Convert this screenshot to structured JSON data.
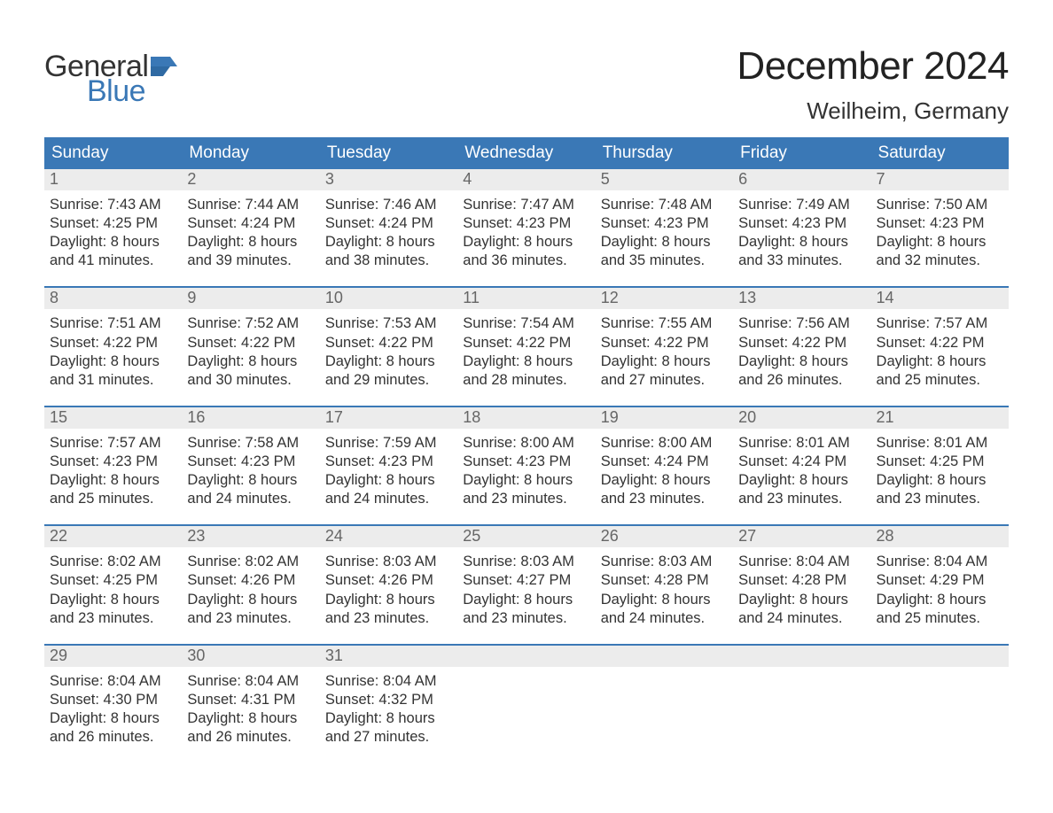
{
  "brand": {
    "word1": "General",
    "word2": "Blue",
    "accent_color": "#3a78b6",
    "text_color": "#333333"
  },
  "title": {
    "month_year": "December 2024",
    "location": "Weilheim, Germany",
    "title_fontsize": 44,
    "location_fontsize": 26,
    "title_color": "#222222"
  },
  "calendar": {
    "type": "table",
    "header_bg": "#3a78b6",
    "header_text_color": "#ffffff",
    "band_bg": "#ececec",
    "band_text_color": "#666666",
    "divider_color": "#3a78b6",
    "body_text_color": "#333333",
    "body_fontsize": 16.5,
    "columns": [
      "Sunday",
      "Monday",
      "Tuesday",
      "Wednesday",
      "Thursday",
      "Friday",
      "Saturday"
    ],
    "weeks": [
      [
        {
          "n": "1",
          "sunrise": "Sunrise: 7:43 AM",
          "sunset": "Sunset: 4:25 PM",
          "dl1": "Daylight: 8 hours",
          "dl2": "and 41 minutes."
        },
        {
          "n": "2",
          "sunrise": "Sunrise: 7:44 AM",
          "sunset": "Sunset: 4:24 PM",
          "dl1": "Daylight: 8 hours",
          "dl2": "and 39 minutes."
        },
        {
          "n": "3",
          "sunrise": "Sunrise: 7:46 AM",
          "sunset": "Sunset: 4:24 PM",
          "dl1": "Daylight: 8 hours",
          "dl2": "and 38 minutes."
        },
        {
          "n": "4",
          "sunrise": "Sunrise: 7:47 AM",
          "sunset": "Sunset: 4:23 PM",
          "dl1": "Daylight: 8 hours",
          "dl2": "and 36 minutes."
        },
        {
          "n": "5",
          "sunrise": "Sunrise: 7:48 AM",
          "sunset": "Sunset: 4:23 PM",
          "dl1": "Daylight: 8 hours",
          "dl2": "and 35 minutes."
        },
        {
          "n": "6",
          "sunrise": "Sunrise: 7:49 AM",
          "sunset": "Sunset: 4:23 PM",
          "dl1": "Daylight: 8 hours",
          "dl2": "and 33 minutes."
        },
        {
          "n": "7",
          "sunrise": "Sunrise: 7:50 AM",
          "sunset": "Sunset: 4:23 PM",
          "dl1": "Daylight: 8 hours",
          "dl2": "and 32 minutes."
        }
      ],
      [
        {
          "n": "8",
          "sunrise": "Sunrise: 7:51 AM",
          "sunset": "Sunset: 4:22 PM",
          "dl1": "Daylight: 8 hours",
          "dl2": "and 31 minutes."
        },
        {
          "n": "9",
          "sunrise": "Sunrise: 7:52 AM",
          "sunset": "Sunset: 4:22 PM",
          "dl1": "Daylight: 8 hours",
          "dl2": "and 30 minutes."
        },
        {
          "n": "10",
          "sunrise": "Sunrise: 7:53 AM",
          "sunset": "Sunset: 4:22 PM",
          "dl1": "Daylight: 8 hours",
          "dl2": "and 29 minutes."
        },
        {
          "n": "11",
          "sunrise": "Sunrise: 7:54 AM",
          "sunset": "Sunset: 4:22 PM",
          "dl1": "Daylight: 8 hours",
          "dl2": "and 28 minutes."
        },
        {
          "n": "12",
          "sunrise": "Sunrise: 7:55 AM",
          "sunset": "Sunset: 4:22 PM",
          "dl1": "Daylight: 8 hours",
          "dl2": "and 27 minutes."
        },
        {
          "n": "13",
          "sunrise": "Sunrise: 7:56 AM",
          "sunset": "Sunset: 4:22 PM",
          "dl1": "Daylight: 8 hours",
          "dl2": "and 26 minutes."
        },
        {
          "n": "14",
          "sunrise": "Sunrise: 7:57 AM",
          "sunset": "Sunset: 4:22 PM",
          "dl1": "Daylight: 8 hours",
          "dl2": "and 25 minutes."
        }
      ],
      [
        {
          "n": "15",
          "sunrise": "Sunrise: 7:57 AM",
          "sunset": "Sunset: 4:23 PM",
          "dl1": "Daylight: 8 hours",
          "dl2": "and 25 minutes."
        },
        {
          "n": "16",
          "sunrise": "Sunrise: 7:58 AM",
          "sunset": "Sunset: 4:23 PM",
          "dl1": "Daylight: 8 hours",
          "dl2": "and 24 minutes."
        },
        {
          "n": "17",
          "sunrise": "Sunrise: 7:59 AM",
          "sunset": "Sunset: 4:23 PM",
          "dl1": "Daylight: 8 hours",
          "dl2": "and 24 minutes."
        },
        {
          "n": "18",
          "sunrise": "Sunrise: 8:00 AM",
          "sunset": "Sunset: 4:23 PM",
          "dl1": "Daylight: 8 hours",
          "dl2": "and 23 minutes."
        },
        {
          "n": "19",
          "sunrise": "Sunrise: 8:00 AM",
          "sunset": "Sunset: 4:24 PM",
          "dl1": "Daylight: 8 hours",
          "dl2": "and 23 minutes."
        },
        {
          "n": "20",
          "sunrise": "Sunrise: 8:01 AM",
          "sunset": "Sunset: 4:24 PM",
          "dl1": "Daylight: 8 hours",
          "dl2": "and 23 minutes."
        },
        {
          "n": "21",
          "sunrise": "Sunrise: 8:01 AM",
          "sunset": "Sunset: 4:25 PM",
          "dl1": "Daylight: 8 hours",
          "dl2": "and 23 minutes."
        }
      ],
      [
        {
          "n": "22",
          "sunrise": "Sunrise: 8:02 AM",
          "sunset": "Sunset: 4:25 PM",
          "dl1": "Daylight: 8 hours",
          "dl2": "and 23 minutes."
        },
        {
          "n": "23",
          "sunrise": "Sunrise: 8:02 AM",
          "sunset": "Sunset: 4:26 PM",
          "dl1": "Daylight: 8 hours",
          "dl2": "and 23 minutes."
        },
        {
          "n": "24",
          "sunrise": "Sunrise: 8:03 AM",
          "sunset": "Sunset: 4:26 PM",
          "dl1": "Daylight: 8 hours",
          "dl2": "and 23 minutes."
        },
        {
          "n": "25",
          "sunrise": "Sunrise: 8:03 AM",
          "sunset": "Sunset: 4:27 PM",
          "dl1": "Daylight: 8 hours",
          "dl2": "and 23 minutes."
        },
        {
          "n": "26",
          "sunrise": "Sunrise: 8:03 AM",
          "sunset": "Sunset: 4:28 PM",
          "dl1": "Daylight: 8 hours",
          "dl2": "and 24 minutes."
        },
        {
          "n": "27",
          "sunrise": "Sunrise: 8:04 AM",
          "sunset": "Sunset: 4:28 PM",
          "dl1": "Daylight: 8 hours",
          "dl2": "and 24 minutes."
        },
        {
          "n": "28",
          "sunrise": "Sunrise: 8:04 AM",
          "sunset": "Sunset: 4:29 PM",
          "dl1": "Daylight: 8 hours",
          "dl2": "and 25 minutes."
        }
      ],
      [
        {
          "n": "29",
          "sunrise": "Sunrise: 8:04 AM",
          "sunset": "Sunset: 4:30 PM",
          "dl1": "Daylight: 8 hours",
          "dl2": "and 26 minutes."
        },
        {
          "n": "30",
          "sunrise": "Sunrise: 8:04 AM",
          "sunset": "Sunset: 4:31 PM",
          "dl1": "Daylight: 8 hours",
          "dl2": "and 26 minutes."
        },
        {
          "n": "31",
          "sunrise": "Sunrise: 8:04 AM",
          "sunset": "Sunset: 4:32 PM",
          "dl1": "Daylight: 8 hours",
          "dl2": "and 27 minutes."
        },
        {
          "n": "",
          "empty": true
        },
        {
          "n": "",
          "empty": true
        },
        {
          "n": "",
          "empty": true
        },
        {
          "n": "",
          "empty": true
        }
      ]
    ]
  }
}
